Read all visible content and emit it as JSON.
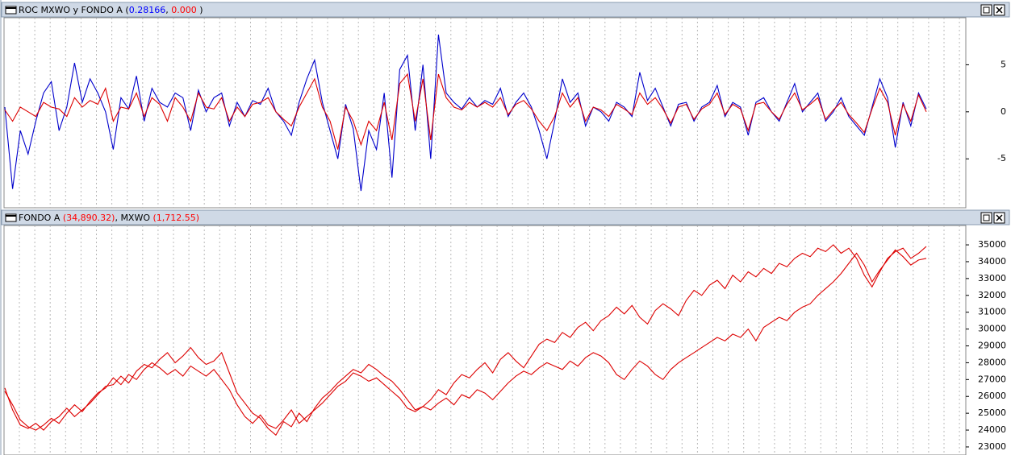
{
  "chart_data": [
    {
      "type": "line",
      "title_parts": [
        {
          "text": "ROC MXWO y FONDO A (",
          "color": "#000000"
        },
        {
          "text": "0.28166",
          "color": "#0000ff"
        },
        {
          "text": ", ",
          "color": "#000000"
        },
        {
          "text": "0.000",
          "color": "#ff0000"
        },
        {
          "text": " )",
          "color": "#000000"
        }
      ],
      "ylim": [
        -10.2,
        10
      ],
      "yticks": [
        -5,
        0,
        5
      ],
      "series": [
        {
          "color": "#0000cc",
          "values": [
            0.5,
            -8.2,
            -2,
            -4.5,
            -1,
            2,
            3.2,
            -2,
            0.5,
            5.2,
            1,
            3.5,
            2,
            0,
            -4,
            1.5,
            0.3,
            3.8,
            -1,
            2.5,
            1,
            0.5,
            2,
            1.5,
            -2,
            2.3,
            0,
            1.5,
            2,
            -1.5,
            1,
            -0.5,
            1.2,
            0.8,
            2.5,
            0,
            -1,
            -2.5,
            1,
            3.5,
            5.5,
            1,
            -2,
            -5,
            0.8,
            -1.8,
            -8.4,
            -2,
            -4,
            2,
            -7,
            4.5,
            6,
            -2,
            5,
            -5,
            8.2,
            2,
            1,
            0.3,
            1.5,
            0.5,
            1.2,
            0.8,
            2.5,
            -0.5,
            1,
            2,
            0.5,
            -2,
            -5,
            -1,
            3.5,
            1,
            2,
            -1.5,
            0.5,
            0,
            -1,
            1,
            0.5,
            -0.5,
            4.2,
            1.2,
            2.5,
            0.5,
            -1.5,
            0.8,
            1,
            -1,
            0.5,
            1,
            2.8,
            -0.5,
            1,
            0.5,
            -2.5,
            1,
            1.5,
            0,
            -1,
            1,
            3,
            0,
            1,
            2,
            -1,
            0,
            1.5,
            -0.5,
            -1.5,
            -2.5,
            0.5,
            3.5,
            1.5,
            -3.8,
            1,
            -1.5,
            2,
            0.3
          ]
        },
        {
          "color": "#dd0000",
          "values": [
            0.2,
            -1,
            0.5,
            0,
            -0.5,
            1,
            0.5,
            0.3,
            -0.5,
            1.5,
            0.5,
            1.2,
            0.8,
            2.5,
            -1,
            0.5,
            0.3,
            2,
            -0.5,
            1.5,
            0.8,
            -1,
            1.5,
            0.5,
            -1,
            2,
            0.5,
            0.3,
            1.5,
            -1,
            0.5,
            -0.5,
            0.8,
            1,
            1.5,
            0,
            -0.8,
            -1.5,
            0.5,
            2,
            3.5,
            0.5,
            -1,
            -4,
            0.5,
            -1,
            -3.5,
            -1,
            -2,
            1,
            -3,
            3,
            4,
            -1,
            3.5,
            -3,
            4,
            1.5,
            0.5,
            0.2,
            1,
            0.5,
            1,
            0.5,
            1.5,
            -0.3,
            0.8,
            1.2,
            0.3,
            -1,
            -2,
            -0.5,
            2,
            0.5,
            1.5,
            -1,
            0.5,
            0.2,
            -0.5,
            0.8,
            0.3,
            -0.3,
            2,
            0.8,
            1.5,
            0.3,
            -1.2,
            0.5,
            0.8,
            -0.8,
            0.3,
            0.8,
            2,
            -0.3,
            0.8,
            0.3,
            -2,
            0.8,
            1,
            0,
            -0.8,
            0.8,
            2,
            0.2,
            0.8,
            1.5,
            -0.8,
            0.2,
            1,
            -0.3,
            -1.2,
            -2.2,
            0.3,
            2.5,
            1,
            -2.5,
            0.8,
            -1,
            1.8,
            0
          ]
        }
      ]
    },
    {
      "type": "line",
      "title_parts": [
        {
          "text": "FONDO A ",
          "color": "#000000"
        },
        {
          "text": "(34,890.32)",
          "color": "#ff0000"
        },
        {
          "text": ", MXWO ",
          "color": "#000000"
        },
        {
          "text": "(1,712.55)",
          "color": "#ff0000"
        }
      ],
      "ylim": [
        22520,
        36150
      ],
      "yticks": [
        23000,
        24000,
        25000,
        26000,
        27000,
        28000,
        29000,
        30000,
        31000,
        32000,
        33000,
        34000,
        35000
      ],
      "series": [
        {
          "color": "#dd0000",
          "values": [
            26500,
            25200,
            24300,
            24100,
            24400,
            24000,
            24500,
            24800,
            25300,
            24800,
            25200,
            25600,
            26100,
            26600,
            26700,
            27200,
            26800,
            27500,
            27900,
            27700,
            28200,
            28600,
            28000,
            28400,
            28900,
            28300,
            27900,
            28100,
            28600,
            27400,
            26200,
            25600,
            25000,
            24700,
            24100,
            23700,
            24500,
            24200,
            25000,
            24500,
            25300,
            25900,
            26300,
            26800,
            27200,
            27600,
            27400,
            27900,
            27600,
            27200,
            26900,
            26400,
            25800,
            25200,
            25400,
            25800,
            26400,
            26100,
            26800,
            27300,
            27100,
            27600,
            28000,
            27400,
            28200,
            28600,
            28100,
            27700,
            28400,
            29100,
            29400,
            29200,
            29800,
            29500,
            30100,
            30400,
            29900,
            30500,
            30800,
            31300,
            30900,
            31400,
            30700,
            30300,
            31100,
            31500,
            31200,
            30800,
            31700,
            32300,
            32000,
            32600,
            32900,
            32400,
            33200,
            32800,
            33400,
            33100,
            33600,
            33300,
            33900,
            33700,
            34200,
            34500,
            34300,
            34800,
            34600,
            35000,
            34500,
            34800,
            34200,
            33200,
            32500,
            33400,
            34200,
            34600,
            34800,
            34200,
            34500,
            34900
          ]
        },
        {
          "color": "#dd0000",
          "values": [
            26300,
            25500,
            24600,
            24200,
            24000,
            24300,
            24700,
            24400,
            25000,
            25500,
            25100,
            25700,
            26200,
            26500,
            27100,
            26700,
            27300,
            27000,
            27600,
            28000,
            27700,
            27300,
            27600,
            27200,
            27800,
            27500,
            27200,
            27600,
            27000,
            26400,
            25500,
            24800,
            24400,
            24900,
            24300,
            24100,
            24600,
            25200,
            24400,
            24800,
            25200,
            25600,
            26100,
            26600,
            26900,
            27400,
            27200,
            26900,
            27100,
            26700,
            26300,
            25900,
            25300,
            25100,
            25400,
            25200,
            25600,
            25900,
            25500,
            26100,
            25900,
            26400,
            26200,
            25800,
            26300,
            26800,
            27200,
            27500,
            27300,
            27700,
            28000,
            27800,
            27600,
            28100,
            27800,
            28300,
            28600,
            28400,
            28000,
            27300,
            27000,
            27600,
            28100,
            27800,
            27300,
            27000,
            27600,
            28000,
            28300,
            28600,
            28900,
            29200,
            29500,
            29300,
            29700,
            29500,
            30000,
            29300,
            30100,
            30400,
            30700,
            30500,
            31000,
            31300,
            31500,
            32000,
            32400,
            32800,
            33300,
            33900,
            34500,
            33800,
            32800,
            33500,
            34100,
            34700,
            34300,
            33800,
            34100,
            34200
          ]
        }
      ]
    }
  ]
}
